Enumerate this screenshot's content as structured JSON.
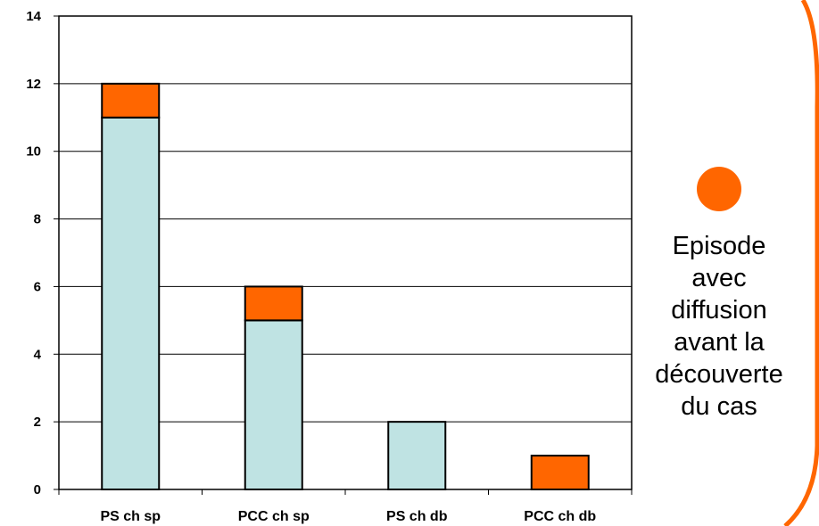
{
  "chart_data": {
    "type": "bar",
    "stacked": true,
    "categories": [
      "PS ch sp",
      "PCC ch sp",
      "PS ch db",
      "PCC ch db"
    ],
    "series": [
      {
        "values": [
          11,
          5,
          2,
          0
        ],
        "color": "#BFE3E3"
      },
      {
        "values": [
          1,
          1,
          0,
          1
        ],
        "color": "#FF6600"
      }
    ],
    "yticks": [
      "0",
      "2",
      "4",
      "6",
      "8",
      "10",
      "12",
      "14"
    ],
    "ylim": [
      0,
      14
    ],
    "grid": true,
    "legend_position": "right"
  },
  "legend": {
    "marker_color": "#FF6600",
    "text": "Episode\navec\ndiffusion\navant la\ndécouverte\ndu cas"
  },
  "frame_color": "#FF6600"
}
